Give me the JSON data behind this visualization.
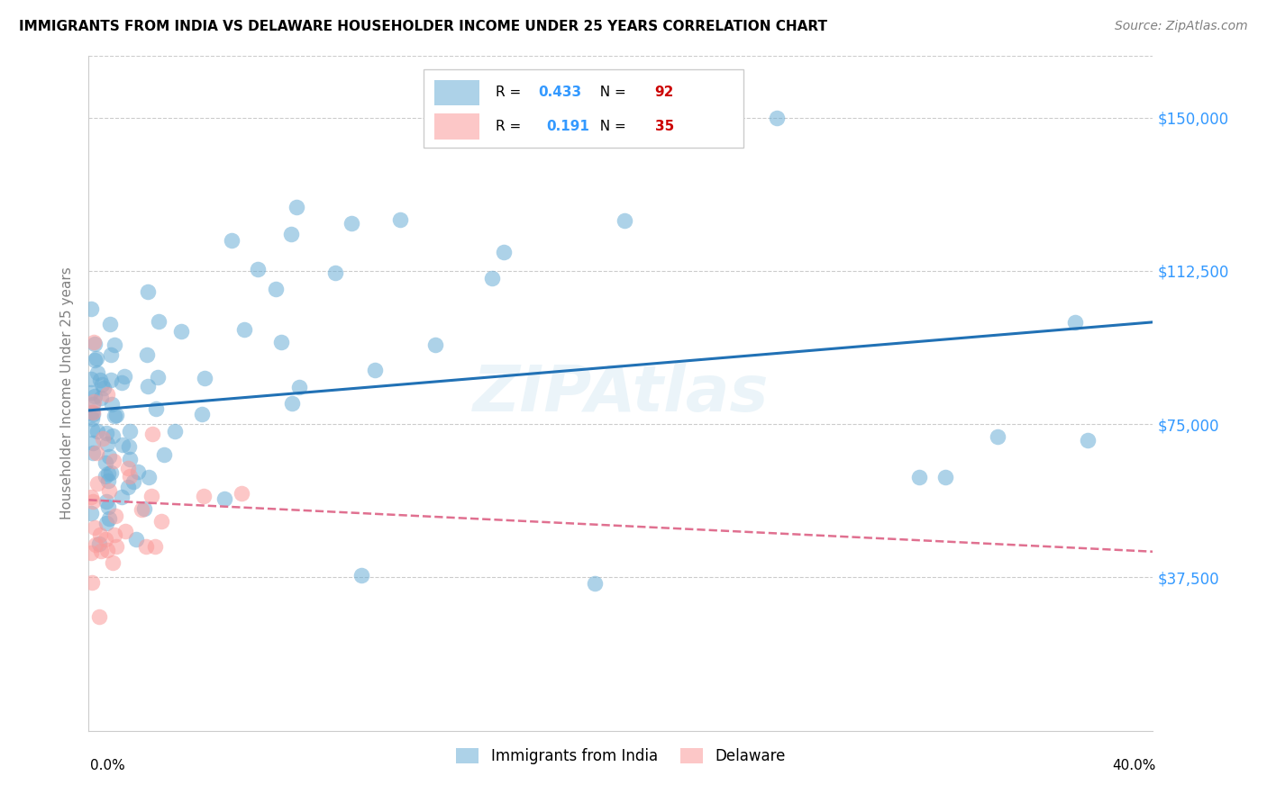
{
  "title": "IMMIGRANTS FROM INDIA VS DELAWARE HOUSEHOLDER INCOME UNDER 25 YEARS CORRELATION CHART",
  "source": "Source: ZipAtlas.com",
  "ylabel": "Householder Income Under 25 years",
  "ytick_labels": [
    "$37,500",
    "$75,000",
    "$112,500",
    "$150,000"
  ],
  "ytick_values": [
    37500,
    75000,
    112500,
    150000
  ],
  "ylim": [
    0,
    165000
  ],
  "xlim": [
    0,
    0.41
  ],
  "india_color": "#6baed6",
  "delaware_color": "#fb9a99",
  "india_line_color": "#2171b5",
  "delaware_line_color": "#e07090",
  "watermark": "ZIPAtlas",
  "india_R": 0.433,
  "india_N": 92,
  "delaware_R": 0.191,
  "delaware_N": 35
}
